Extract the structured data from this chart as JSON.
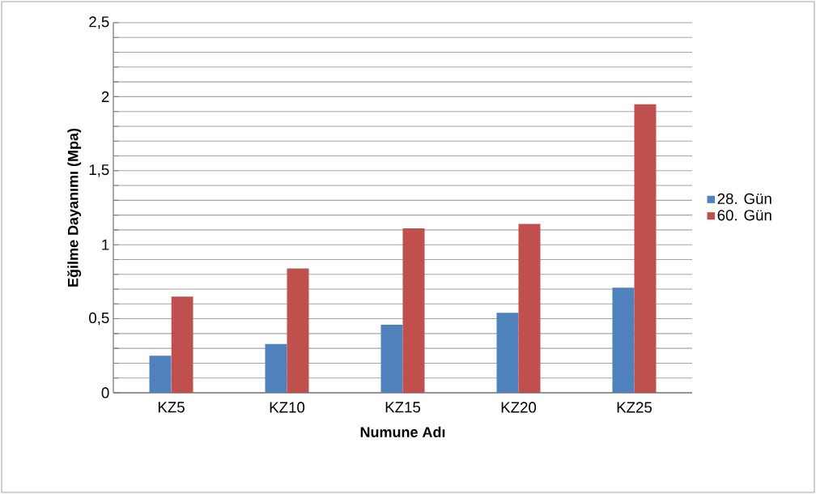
{
  "chart_data": {
    "type": "bar",
    "xlabel": "Numune Adı",
    "ylabel": "Eğilme Dayanımı (Mpa)",
    "categories": [
      "KZ5",
      "KZ10",
      "KZ15",
      "KZ20",
      "KZ25"
    ],
    "series": [
      {
        "name": "28. Gün",
        "color": "#4f81bd",
        "values": [
          0.25,
          0.33,
          0.46,
          0.54,
          0.71
        ]
      },
      {
        "name": "60. Gün",
        "color": "#c0504d",
        "values": [
          0.65,
          0.84,
          1.11,
          1.14,
          1.95
        ]
      }
    ],
    "ylim": [
      0,
      2.5
    ],
    "yticks": [
      0,
      {
        "value": 0.1,
        "label": null
      },
      {
        "value": 0.2,
        "label": null
      },
      {
        "value": 0.3,
        "label": null
      },
      {
        "value": 0.4,
        "label": null
      },
      {
        "value": 0.5,
        "label": "0,5"
      },
      {
        "value": 0.6,
        "label": null
      },
      {
        "value": 0.7,
        "label": null
      },
      {
        "value": 0.8,
        "label": null
      },
      {
        "value": 0.9,
        "label": null
      },
      1,
      {
        "value": 1.1,
        "label": null
      },
      {
        "value": 1.2,
        "label": null
      },
      {
        "value": 1.3,
        "label": null
      },
      {
        "value": 1.4,
        "label": null
      },
      {
        "value": 1.5,
        "label": "1,5"
      },
      {
        "value": 1.6,
        "label": null
      },
      {
        "value": 1.7,
        "label": null
      },
      {
        "value": 1.8,
        "label": null
      },
      {
        "value": 1.9,
        "label": null
      },
      2,
      {
        "value": 2.1,
        "label": null
      },
      {
        "value": 2.2,
        "label": null
      },
      {
        "value": 2.3,
        "label": null
      },
      {
        "value": 2.4,
        "label": null
      },
      {
        "value": 2.5,
        "label": "2,5"
      }
    ],
    "grid": "y",
    "legend": "right"
  }
}
